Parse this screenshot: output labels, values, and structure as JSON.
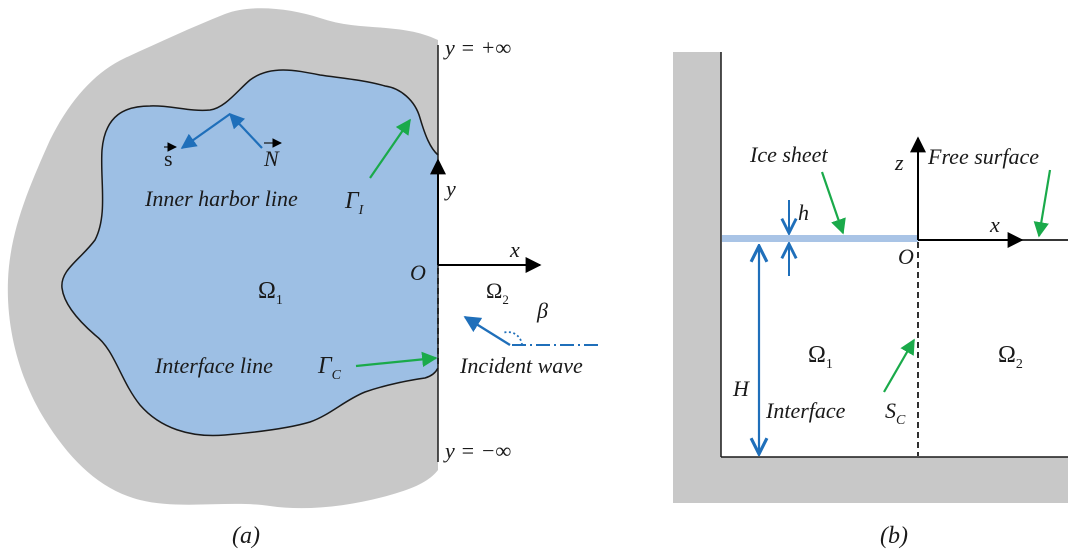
{
  "panel_a": {
    "caption": "(a)",
    "y_pos_inf": "y = +∞",
    "y_neg_inf": "y = −∞",
    "axis_y": "y",
    "axis_x": "x",
    "origin": "O",
    "omega1": "Ω",
    "omega1_sub": "1",
    "omega2": "Ω",
    "omega2_sub": "2",
    "beta": "β",
    "inner_harbor": "Inner harbor line",
    "gamma_i": "Γ",
    "gamma_i_sub": "I",
    "interface": "Interface line",
    "gamma_c": "Γ",
    "gamma_c_sub": "C",
    "incident": "Incident wave",
    "s_vec": "s",
    "n_vec": "N"
  },
  "panel_b": {
    "caption": "(b)",
    "ice_sheet": "Ice sheet",
    "free_surface": "Free surface",
    "axis_z": "z",
    "axis_x": "x",
    "origin": "O",
    "h": "h",
    "H": "H",
    "omega1": "Ω",
    "omega1_sub": "1",
    "omega2": "Ω",
    "omega2_sub": "2",
    "interface": "Interface",
    "s_c": "S",
    "s_c_sub": "C"
  },
  "colors": {
    "water": "#9dbfe4",
    "land": "#c8c8c8",
    "blue_arrow": "#1f6fba",
    "green_arrow": "#1aaa4a",
    "ice": "#a9c4e6"
  }
}
